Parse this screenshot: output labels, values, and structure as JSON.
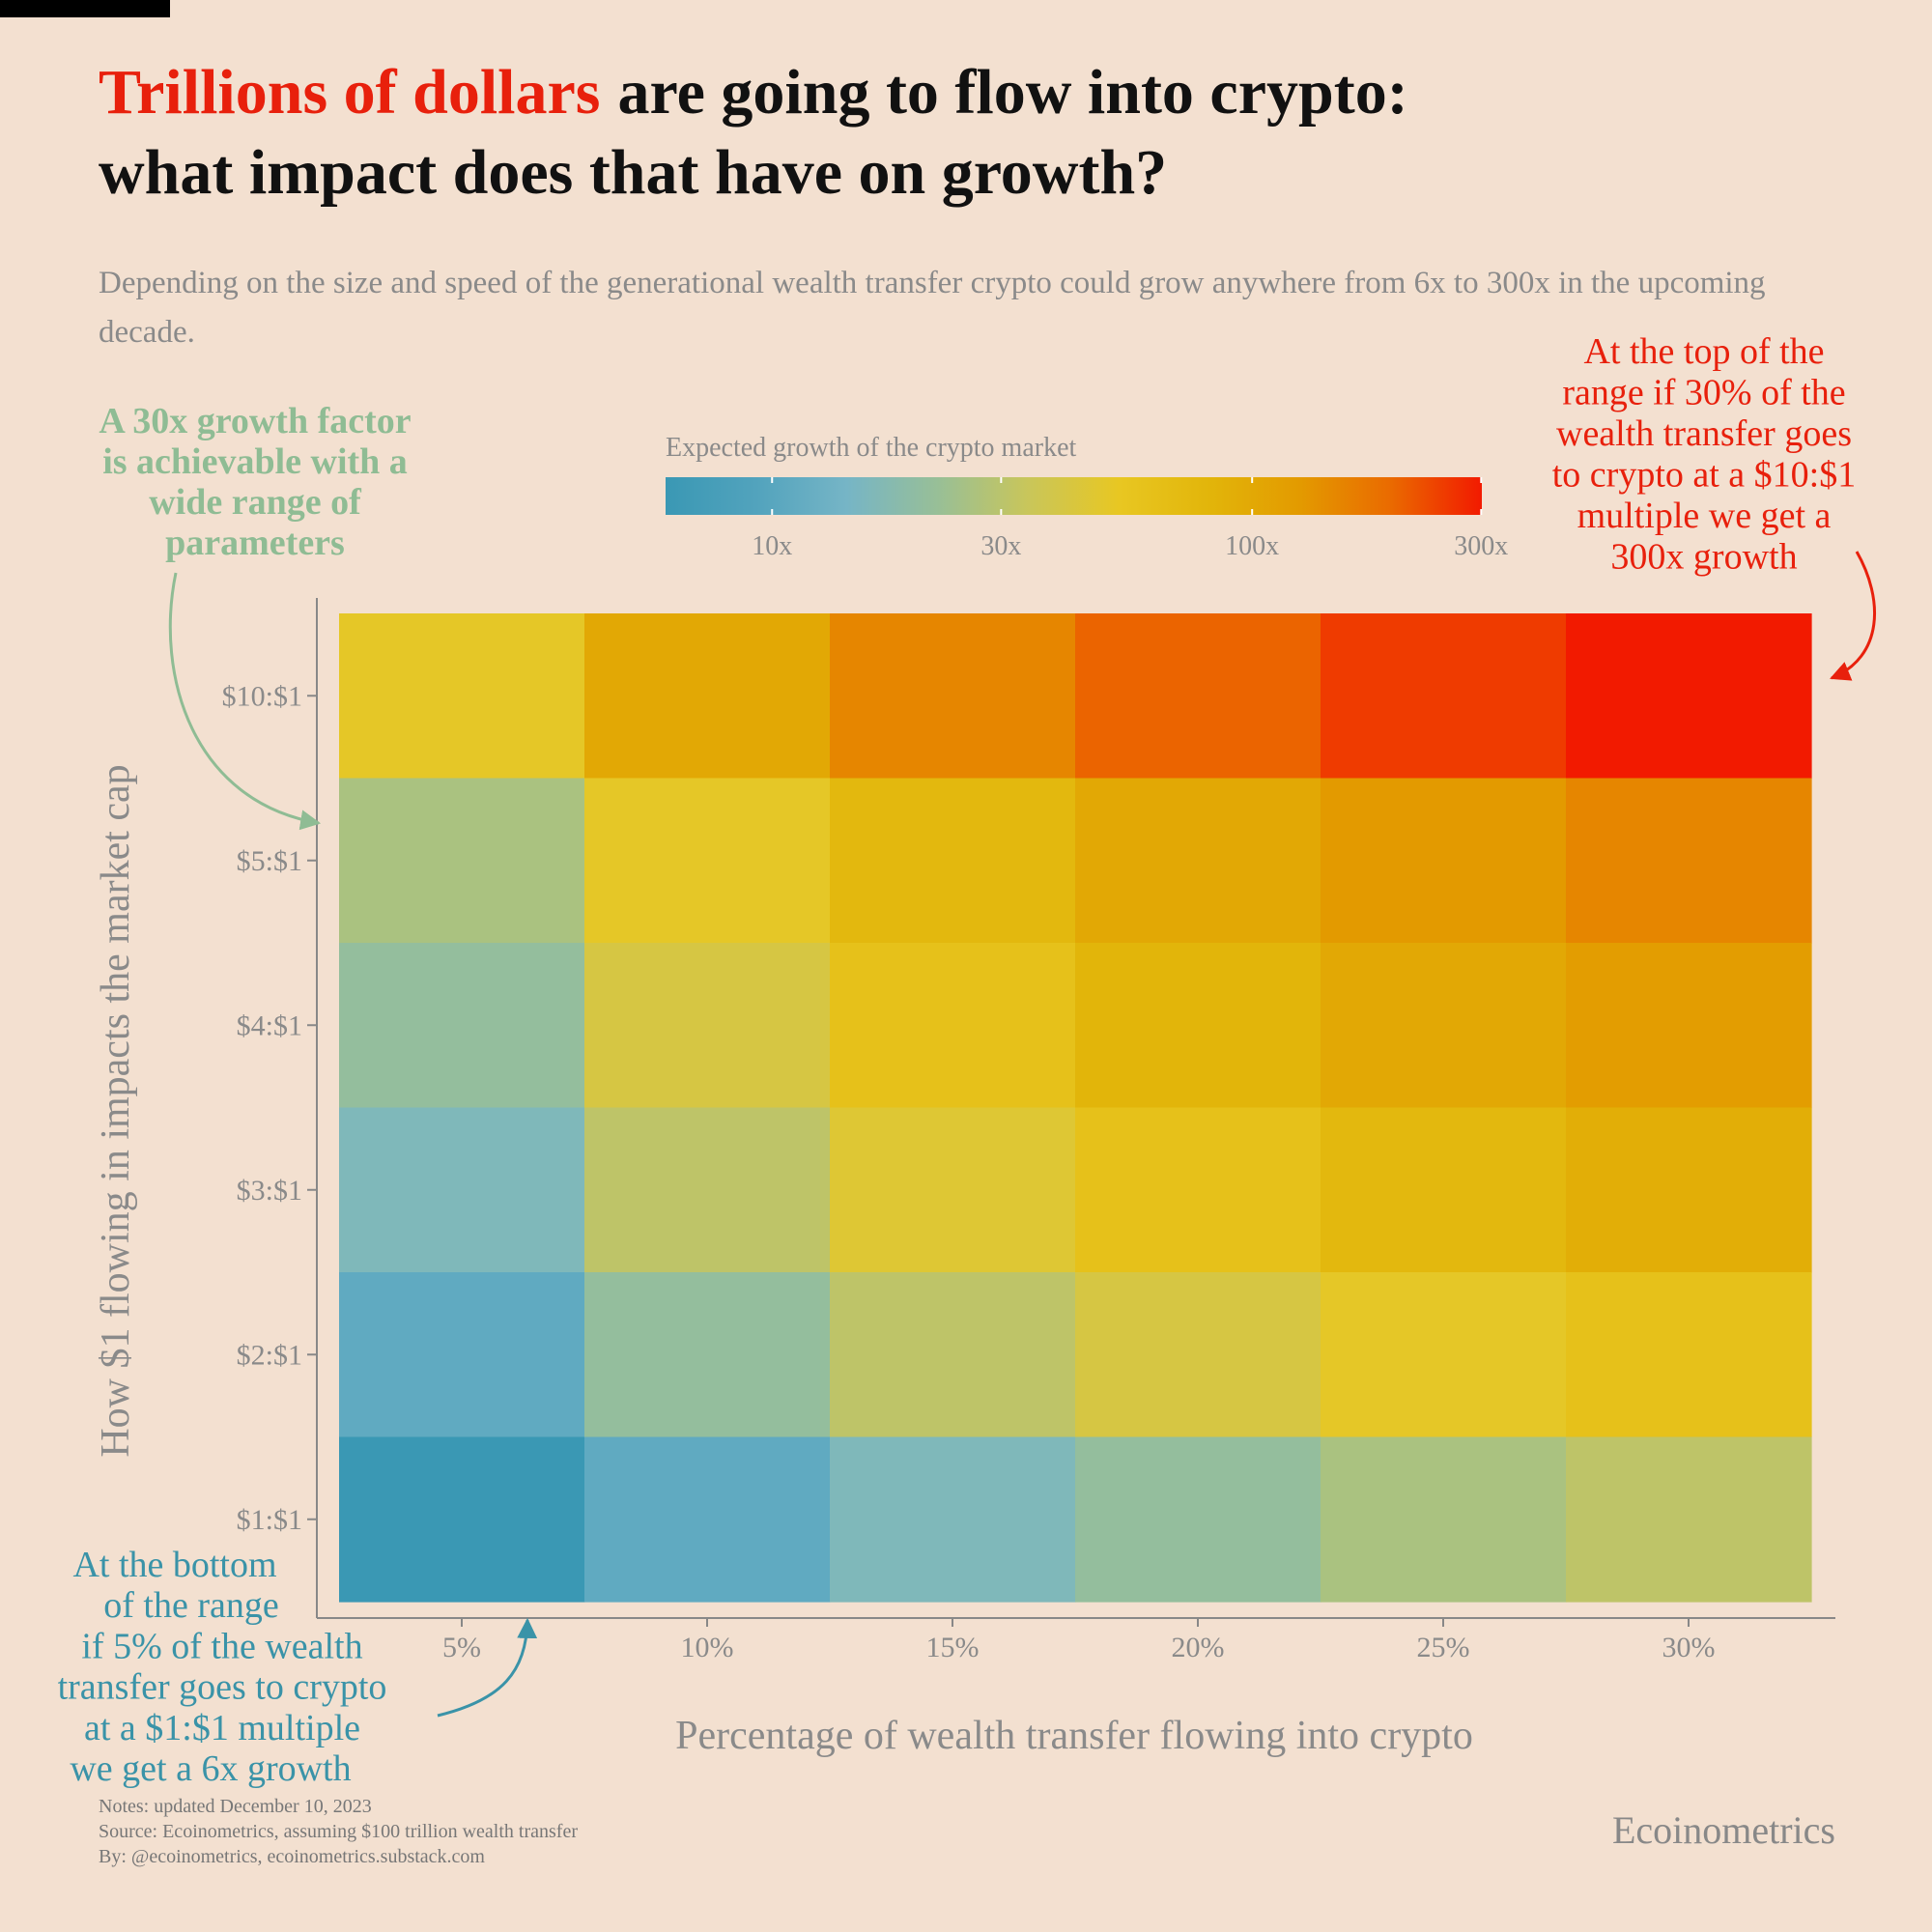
{
  "chart_data": {
    "type": "heatmap",
    "title": {
      "highlight": "Trillions of dollars",
      "line1_rest": "are going to flow into crypto:",
      "line2": "what impact does that have on growth?",
      "highlight_color": "#e8200c"
    },
    "subtitle": "Depending on the size and speed of the generational wealth transfer crypto could grow anywhere from 6x to 300x in the upcoming decade.",
    "x_label": "Percentage of wealth transfer flowing into crypto",
    "y_label": "How $1 flowing in impacts the market cap",
    "x_categories": [
      "5%",
      "10%",
      "15%",
      "20%",
      "25%",
      "30%"
    ],
    "y_categories": [
      "$10:$1",
      "$5:$1",
      "$4:$1",
      "$3:$1",
      "$2:$1",
      "$1:$1"
    ],
    "values": [
      [
        51,
        101,
        151,
        201,
        251,
        301
      ],
      [
        26,
        51,
        76,
        101,
        126,
        151
      ],
      [
        21,
        41,
        61,
        81,
        101,
        121
      ],
      [
        16,
        31,
        46,
        61,
        76,
        91
      ],
      [
        11,
        21,
        31,
        41,
        51,
        61
      ],
      [
        6,
        11,
        16,
        21,
        26,
        31
      ]
    ],
    "colorbar": {
      "title": "Expected growth of the crypto market",
      "scale": "log",
      "clim": [
        6,
        301
      ],
      "ticks": [
        {
          "value": 10,
          "label": "10x"
        },
        {
          "value": 30,
          "label": "30x"
        },
        {
          "value": 100,
          "label": "100x"
        },
        {
          "value": 300,
          "label": "300x"
        }
      ],
      "colormap": [
        "#3a98b4",
        "#52a3bd",
        "#76b5c6",
        "#98bf97",
        "#c9c65a",
        "#e8c722",
        "#e2b50a",
        "#e39a00",
        "#ea6a00",
        "#f21a00"
      ]
    },
    "annotations": [
      {
        "color": "#8fbc94",
        "lines": [
          "A 30x growth factor",
          "is achievable with a",
          "wide range of",
          "parameters"
        ]
      },
      {
        "color": "#e8200c",
        "lines": [
          "At the top of the",
          "range if 30% of the",
          "wealth transfer goes",
          "to crypto at a $10:$1",
          "multiple we get a",
          "300x growth"
        ]
      },
      {
        "color": "#3a93a8",
        "lines": [
          "At the bottom",
          "of the range",
          "if 5% of the wealth",
          "transfer goes to crypto",
          "at a $1:$1  multiple",
          "we  get a 6x growth"
        ]
      }
    ],
    "notes": [
      "Notes: updated December 10, 2023",
      "Source: Ecoinometrics, assuming $100 trillion wealth transfer",
      "By: @ecoinometrics, ecoinometrics.substack.com"
    ],
    "brand": "Ecoinometrics"
  }
}
